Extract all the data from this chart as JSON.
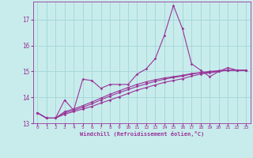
{
  "xlabel": "Windchill (Refroidissement éolien,°C)",
  "bg_color": "#c8ecec",
  "grid_color": "#a8d8d8",
  "line_color": "#993399",
  "x": [
    0,
    1,
    2,
    3,
    4,
    5,
    6,
    7,
    8,
    9,
    10,
    11,
    12,
    13,
    14,
    15,
    16,
    17,
    18,
    19,
    20,
    21,
    22,
    23
  ],
  "y_main": [
    13.4,
    13.2,
    13.2,
    13.9,
    13.5,
    14.7,
    14.65,
    14.35,
    14.5,
    14.5,
    14.5,
    14.9,
    15.1,
    15.5,
    16.4,
    17.55,
    16.65,
    15.3,
    15.05,
    14.8,
    15.0,
    15.15,
    15.05,
    15.05
  ],
  "y_line1": [
    13.4,
    13.2,
    13.2,
    13.35,
    13.45,
    13.55,
    13.65,
    13.78,
    13.9,
    14.02,
    14.15,
    14.28,
    14.38,
    14.48,
    14.58,
    14.65,
    14.72,
    14.82,
    14.9,
    14.95,
    15.0,
    15.05,
    15.05,
    15.05
  ],
  "y_line2": [
    13.4,
    13.2,
    13.2,
    13.4,
    13.5,
    13.62,
    13.75,
    13.9,
    14.05,
    14.18,
    14.3,
    14.42,
    14.52,
    14.62,
    14.7,
    14.77,
    14.82,
    14.9,
    14.95,
    14.98,
    15.02,
    15.05,
    15.05,
    15.05
  ],
  "y_line3": [
    13.4,
    13.2,
    13.2,
    13.45,
    13.55,
    13.68,
    13.82,
    13.97,
    14.12,
    14.25,
    14.38,
    14.5,
    14.6,
    14.68,
    14.75,
    14.8,
    14.85,
    14.92,
    14.96,
    15.0,
    15.03,
    15.05,
    15.05,
    15.05
  ],
  "xlim": [
    -0.5,
    23.5
  ],
  "ylim": [
    13.0,
    17.7
  ],
  "yticks": [
    13,
    14,
    15,
    16,
    17
  ],
  "xticks": [
    0,
    1,
    2,
    3,
    4,
    5,
    6,
    7,
    8,
    9,
    10,
    11,
    12,
    13,
    14,
    15,
    16,
    17,
    18,
    19,
    20,
    21,
    22,
    23
  ]
}
